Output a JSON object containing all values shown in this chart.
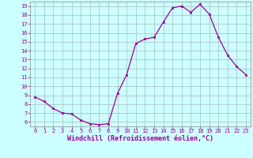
{
  "x": [
    0,
    1,
    2,
    3,
    4,
    5,
    6,
    7,
    8,
    9,
    10,
    11,
    12,
    13,
    14,
    15,
    16,
    17,
    18,
    19,
    20,
    21,
    22,
    23
  ],
  "y": [
    8.8,
    8.3,
    7.5,
    7.0,
    6.9,
    6.2,
    5.8,
    5.7,
    5.8,
    9.2,
    11.3,
    14.8,
    15.3,
    15.5,
    17.2,
    18.8,
    19.0,
    18.3,
    19.2,
    18.1,
    15.5,
    13.5,
    12.2,
    11.3
  ],
  "line_color": "#990099",
  "marker": "s",
  "marker_size": 1.8,
  "background_color": "#ccffff",
  "grid_color": "#aabbbb",
  "xlabel": "Windchill (Refroidissement éolien,°C)",
  "xlabel_color": "#990099",
  "tick_color": "#990099",
  "ylim": [
    5.5,
    19.5
  ],
  "xlim": [
    -0.5,
    23.5
  ],
  "yticks": [
    6,
    7,
    8,
    9,
    10,
    11,
    12,
    13,
    14,
    15,
    16,
    17,
    18,
    19
  ],
  "xticks": [
    0,
    1,
    2,
    3,
    4,
    5,
    6,
    7,
    8,
    9,
    10,
    11,
    12,
    13,
    14,
    15,
    16,
    17,
    18,
    19,
    20,
    21,
    22,
    23
  ],
  "tick_fontsize": 5.0,
  "xlabel_fontsize": 6.0,
  "line_width": 0.9
}
